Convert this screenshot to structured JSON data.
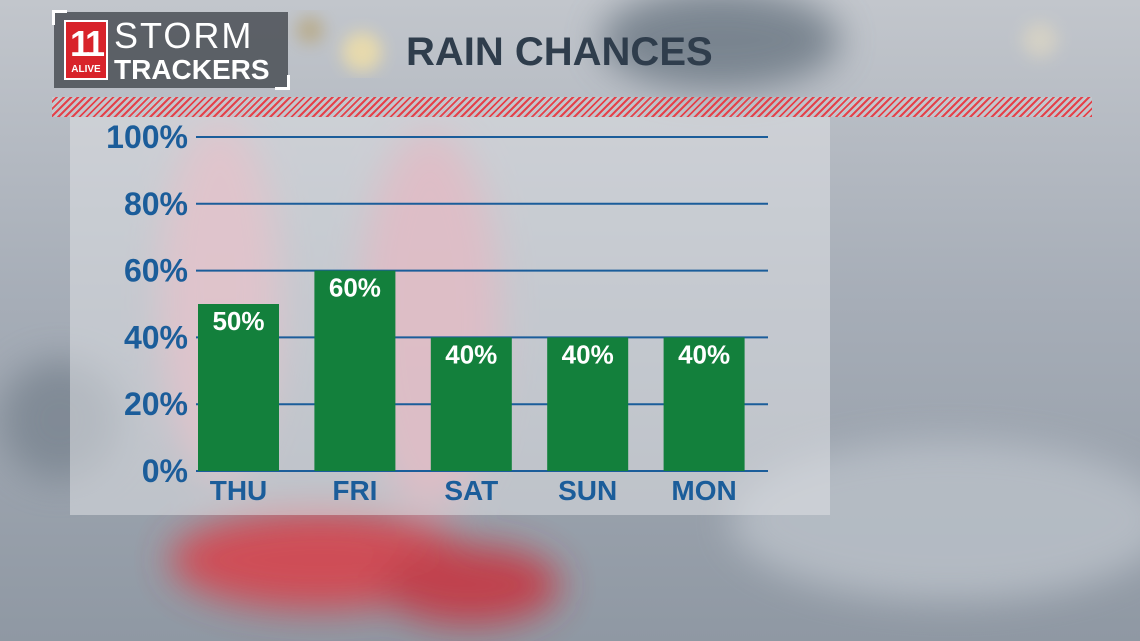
{
  "brand": {
    "station_number": "11",
    "station_word": "ALIVE",
    "line1": "STORM",
    "line2": "TRACKERS"
  },
  "colors": {
    "bar": "#13803c",
    "grid": "#1b5d9a",
    "label": "#1b5d9a",
    "title": "#2f3d4c",
    "accent": "#e4424a"
  },
  "chart_data": {
    "type": "bar",
    "title": "RAIN CHANCES",
    "categories": [
      "THU",
      "FRI",
      "SAT",
      "SUN",
      "MON"
    ],
    "values": [
      50,
      60,
      40,
      40,
      40
    ],
    "value_labels": [
      "50%",
      "60%",
      "40%",
      "40%",
      "40%"
    ],
    "ylim": [
      0,
      100
    ],
    "yticks": [
      0,
      20,
      40,
      60,
      80,
      100
    ],
    "ytick_labels": [
      "0%",
      "20%",
      "40%",
      "60%",
      "80%",
      "100%"
    ],
    "grid": true,
    "legend": "none"
  }
}
